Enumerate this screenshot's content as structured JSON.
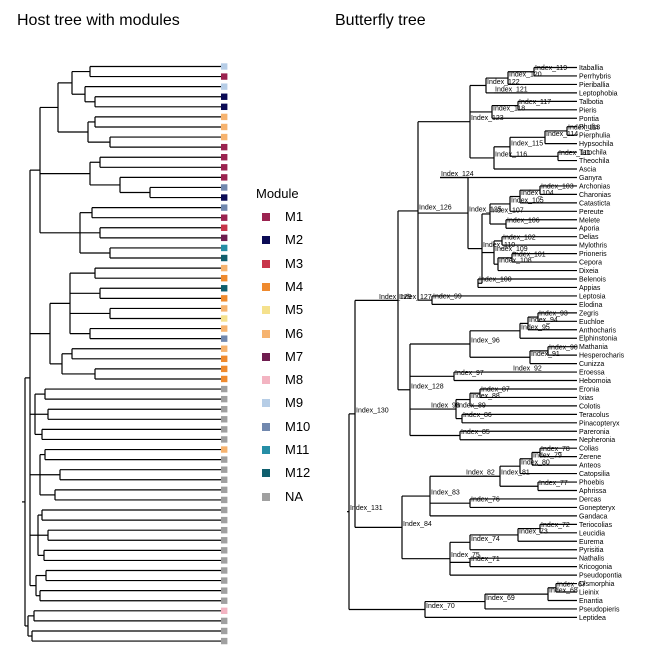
{
  "titles": {
    "host": "Host tree with modules",
    "butterfly": "Butterfly tree"
  },
  "legend": {
    "title": "Module",
    "items": [
      {
        "label": "M1",
        "color": "#9B2350"
      },
      {
        "label": "M2",
        "color": "#0B0B55"
      },
      {
        "label": "M3",
        "color": "#C8354A"
      },
      {
        "label": "M4",
        "color": "#EF8A2E"
      },
      {
        "label": "M5",
        "color": "#F5E18D"
      },
      {
        "label": "M6",
        "color": "#F6B36F"
      },
      {
        "label": "M7",
        "color": "#6F1D4F"
      },
      {
        "label": "M8",
        "color": "#F3B4C2"
      },
      {
        "label": "M9",
        "color": "#B6CDE6"
      },
      {
        "label": "M10",
        "color": "#7188AE"
      },
      {
        "label": "M11",
        "color": "#268EA6"
      },
      {
        "label": "M12",
        "color": "#0F5F6E"
      },
      {
        "label": "NA",
        "color": "#A0A0A0"
      }
    ]
  },
  "host_tips": [
    "M9",
    "M1",
    "M9",
    "M2",
    "M2",
    "M6",
    "M6",
    "M6",
    "M1",
    "M1",
    "M1",
    "M1",
    "M10",
    "M2",
    "M10",
    "M1",
    "M3",
    "M7",
    "M11",
    "M12",
    "M6",
    "M4",
    "M12",
    "M4",
    "M6",
    "M5",
    "M6",
    "M10",
    "M6",
    "M4",
    "M4",
    "M4",
    "NA",
    "NA",
    "NA",
    "NA",
    "NA",
    "NA",
    "M6",
    "NA",
    "NA",
    "NA",
    "NA",
    "NA",
    "NA",
    "NA",
    "NA",
    "NA",
    "NA",
    "NA",
    "NA",
    "NA",
    "NA",
    "NA",
    "M8",
    "NA",
    "NA",
    "NA"
  ],
  "butterfly_tips": [
    "Itaballia",
    "Perrhybris",
    "Pieriballia",
    "Leptophobia",
    "Talbotia",
    "Pieris",
    "Pontia",
    "Phulia",
    "Pierphulia",
    "Hypsochila",
    "Tatochila",
    "Theochila",
    "Ascia",
    "Ganyra",
    "Archonias",
    "Charonias",
    "Catasticta",
    "Pereute",
    "Melete",
    "Aporia",
    "Delias",
    "Mylothris",
    "Prioneris",
    "Cepora",
    "Dixeia",
    "Belenois",
    "Appias",
    "Leptosia",
    "Elodina",
    "Zegris",
    "Euchloe",
    "Anthocharis",
    "Elphinstonia",
    "Mathania",
    "Hesperocharis",
    "Cunizza",
    "Eroessa",
    "Hebomoia",
    "Eronia",
    "Ixias",
    "Colotis",
    "Teracolus",
    "Pinacopteryx",
    "Pareronia",
    "Nepheronia",
    "Colias",
    "Zerene",
    "Anteos",
    "Catopsilia",
    "Phoebis",
    "Aphrissa",
    "Dercas",
    "Gonepteryx",
    "Gandaca",
    "Teriocolias",
    "Leucidia",
    "Eurema",
    "Pyrisitia",
    "Nathalis",
    "Kricogonia",
    "Pseudopontia",
    "Dismorphia",
    "Lieinix",
    "Enantia",
    "Pseudopieris",
    "Leptidea"
  ],
  "butterfly_nodes": [
    "Index_119",
    "Index_120",
    "Index_121",
    "Index_122",
    "Index_117",
    "Index_118",
    "Index_123",
    "Index_113",
    "Index_112",
    "Index_114",
    "Index_111",
    "Index_115",
    "Index_116",
    "Index_124",
    "Index_103",
    "Index_104",
    "Index_105",
    "Index_106",
    "Index_107",
    "Index_102",
    "Index_108",
    "Index_109",
    "Index_101",
    "Index_110",
    "Index_100",
    "Index_125",
    "Index_126",
    "Index_99",
    "Index_93",
    "Index_94",
    "Index_95",
    "Index_127",
    "Index_96",
    "Index_90",
    "Index_91",
    "Index_97",
    "Index_92",
    "Index_128",
    "Index_98",
    "Index_87",
    "Index_88",
    "Index_89",
    "Index_86",
    "Index_85",
    "Index_129",
    "Index_78",
    "Index_79",
    "Index_80",
    "Index_81",
    "Index_77",
    "Index_82",
    "Index_83",
    "Index_76",
    "Index_130",
    "Index_84",
    "Index_72",
    "Index_73",
    "Index_74",
    "Index_75",
    "Index_71",
    "Index_131",
    "Index_67",
    "Index_68",
    "Index_69",
    "Index_70"
  ]
}
